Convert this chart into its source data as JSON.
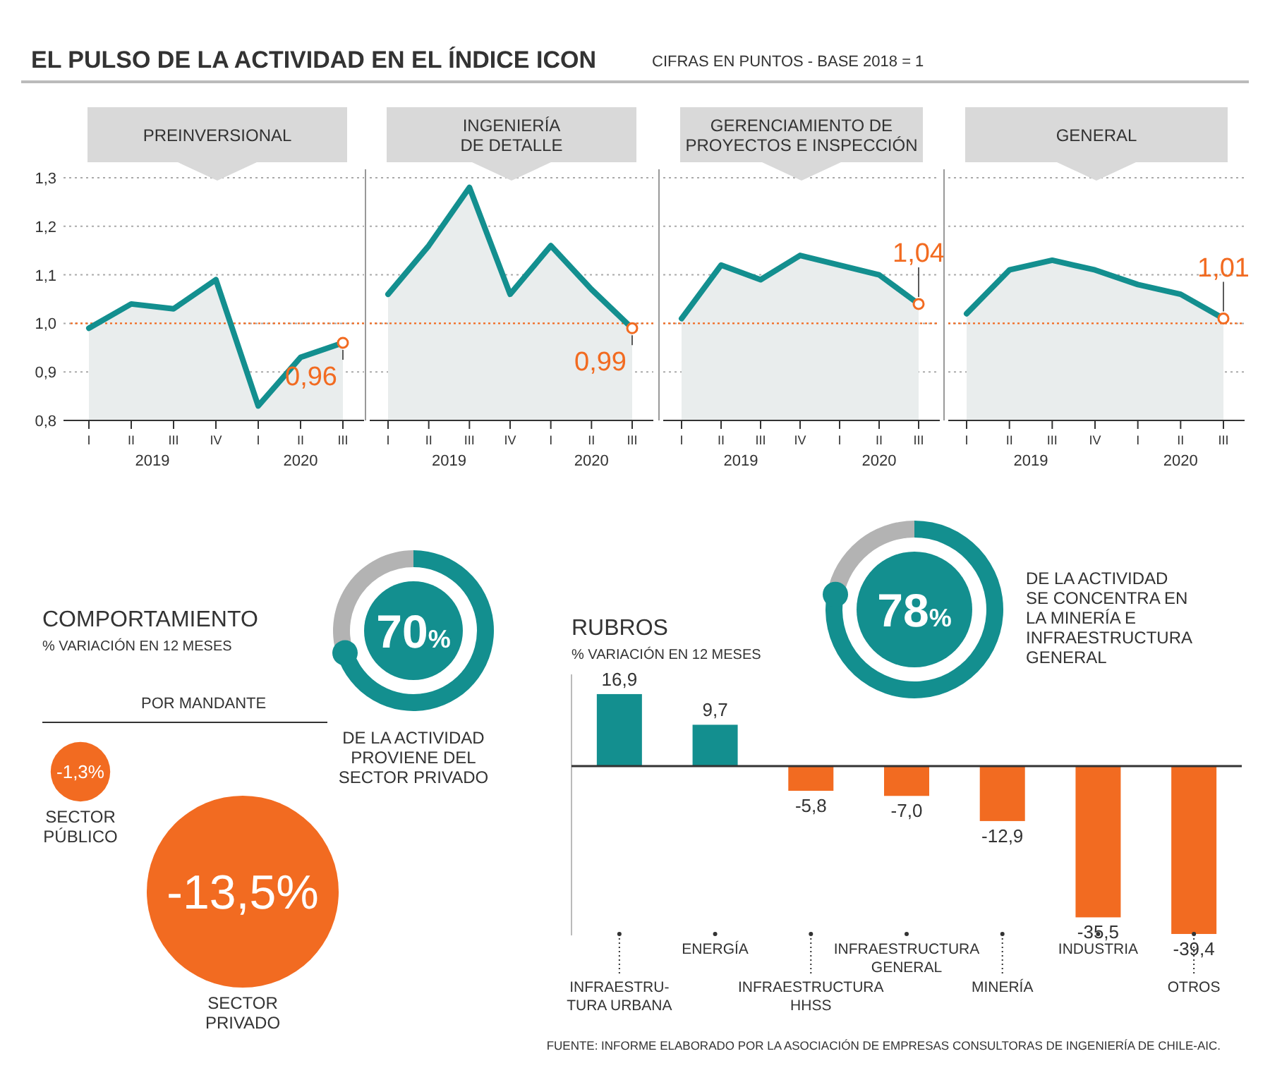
{
  "chart_data": [
    {
      "type": "other",
      "title": "EL PULSO DE LA ACTIVIDAD EN EL ÍNDICE ICON",
      "subtitle": "CIFRAS EN PUNTOS - BASE 2018 = 1"
    },
    {
      "type": "area",
      "title": "PREINVERSIONAL",
      "categories": [
        "I",
        "II",
        "III",
        "IV",
        "I",
        "II",
        "III"
      ],
      "series": [
        {
          "color": "#138f8f",
          "values": [
            0.99,
            1.04,
            1.03,
            1.09,
            0.83,
            0.93,
            0.96
          ],
          "value_labels": [
            null,
            null,
            null,
            null,
            null,
            null,
            "0,96"
          ]
        }
      ],
      "ylim": [
        0.8,
        1.3
      ],
      "yticks": [
        {
          "value": 0.8,
          "label": "0,8"
        },
        {
          "value": 0.9,
          "label": "0,9"
        },
        {
          "value": 1.0,
          "label": "1,0"
        },
        {
          "value": 1.1,
          "label": "1,1"
        },
        {
          "value": 1.2,
          "label": "1,2"
        },
        {
          "value": 1.3,
          "label": "1,3"
        }
      ],
      "grid": "y",
      "ref_lines": [
        {
          "axis": "y",
          "value": 1.0,
          "color": "#f26b21",
          "line_style": "dotted"
        }
      ],
      "annotations": [
        "2019",
        "2020"
      ]
    },
    {
      "type": "area",
      "title": "INGENIERÍA\nDE DETALLE",
      "categories": [
        "I",
        "II",
        "III",
        "IV",
        "I",
        "II",
        "III"
      ],
      "series": [
        {
          "color": "#138f8f",
          "values": [
            1.06,
            1.16,
            1.28,
            1.06,
            1.16,
            1.07,
            0.99
          ],
          "value_labels": [
            null,
            null,
            null,
            null,
            null,
            null,
            "0,99"
          ]
        }
      ],
      "ylim": [
        0.8,
        1.3
      ],
      "yticks": [
        0.8,
        0.9,
        1.0,
        1.1,
        1.2,
        1.3
      ],
      "grid": "y",
      "tick_labels": "x",
      "ref_lines": [
        {
          "axis": "y",
          "value": 1.0,
          "color": "#f26b21",
          "line_style": "dotted"
        }
      ],
      "annotations": [
        "2019",
        "2020"
      ]
    },
    {
      "type": "area",
      "title": "GERENCIAMIENTO DE\nPROYECTOS E INSPECCIÓN",
      "categories": [
        "I",
        "II",
        "III",
        "IV",
        "I",
        "II",
        "III"
      ],
      "series": [
        {
          "color": "#138f8f",
          "values": [
            1.01,
            1.12,
            1.09,
            1.14,
            1.12,
            1.1,
            1.04
          ],
          "value_labels": [
            null,
            null,
            null,
            null,
            null,
            null,
            "1,04"
          ]
        }
      ],
      "ylim": [
        0.8,
        1.3
      ],
      "yticks": [
        0.8,
        0.9,
        1.0,
        1.1,
        1.2,
        1.3
      ],
      "grid": "y",
      "tick_labels": "x",
      "ref_lines": [
        {
          "axis": "y",
          "value": 1.0,
          "color": "#f26b21",
          "line_style": "dotted"
        }
      ],
      "annotations": [
        "2019",
        "2020"
      ]
    },
    {
      "type": "area",
      "title": "GENERAL",
      "categories": [
        "I",
        "II",
        "III",
        "IV",
        "I",
        "II",
        "III"
      ],
      "series": [
        {
          "color": "#138f8f",
          "values": [
            1.02,
            1.11,
            1.13,
            1.11,
            1.08,
            1.06,
            1.01
          ],
          "value_labels": [
            null,
            null,
            null,
            null,
            null,
            null,
            "1,01"
          ]
        }
      ],
      "ylim": [
        0.8,
        1.3
      ],
      "yticks": [
        0.8,
        0.9,
        1.0,
        1.1,
        1.2,
        1.3
      ],
      "grid": "y",
      "tick_labels": "x",
      "ref_lines": [
        {
          "axis": "y",
          "value": 1.0,
          "color": "#f26b21",
          "line_style": "dotted"
        }
      ],
      "annotations": [
        "2019",
        "2020"
      ]
    },
    {
      "type": "other",
      "title": "COMPORTAMIENTO",
      "subtitle": "% VARIACIÓN EN 12 MESES",
      "legend_title": "POR MANDANTE",
      "categories": [
        "SECTOR\nPÚBLICO",
        "SECTOR\nPRIVADO"
      ],
      "values": [
        -1.3,
        -13.5
      ],
      "value_labels": [
        "-1,3%",
        "-13,5%"
      ],
      "colors": [
        "#f26b21",
        "#f26b21"
      ]
    },
    {
      "type": "donut",
      "categories": [
        null,
        null
      ],
      "values": [
        70,
        30
      ],
      "colors": [
        "#138f8f",
        "#b3b3b3"
      ],
      "value_labels": [
        "70%",
        null
      ],
      "annotations": [
        "DE LA ACTIVIDAD\nPROVIENE DEL\nSECTOR PRIVADO"
      ]
    },
    {
      "type": "bar",
      "title": "RUBROS",
      "subtitle": "% VARIACIÓN EN 12 MESES",
      "categories": [
        "INFRAESTRU-\nTURA URBANA",
        "ENERGÍA",
        "INFRAESTRUCTURA\nHHSS",
        "INFRAESTRUCTURA\nGENERAL",
        "MINERÍA",
        "INDUSTRIA",
        "OTROS"
      ],
      "values": [
        16.9,
        9.7,
        -5.8,
        -7.0,
        -12.9,
        -35.5,
        -39.4
      ],
      "colors": [
        "#138f8f",
        "#138f8f",
        "#f26b21",
        "#f26b21",
        "#f26b21",
        "#f26b21",
        "#f26b21"
      ],
      "value_labels": [
        "16,9",
        "9,7",
        "-5,8",
        "-7,0",
        "-12,9",
        "-35,5",
        "-39,4"
      ],
      "annotations": [
        "FUENTE: INFORME ELABORADO POR LA ASOCIACIÓN DE EMPRESAS CONSULTORAS DE INGENIERÍA DE CHILE-AIC."
      ]
    },
    {
      "type": "donut",
      "categories": [
        null,
        null
      ],
      "values": [
        78,
        22
      ],
      "colors": [
        "#138f8f",
        "#b3b3b3"
      ],
      "value_labels": [
        "78%",
        null
      ],
      "annotations": [
        "DE LA ACTIVIDAD\nSE CONCENTRA EN\nLA MINERÍA E\nINFRAESTRUCTURA\nGENERAL"
      ]
    }
  ]
}
